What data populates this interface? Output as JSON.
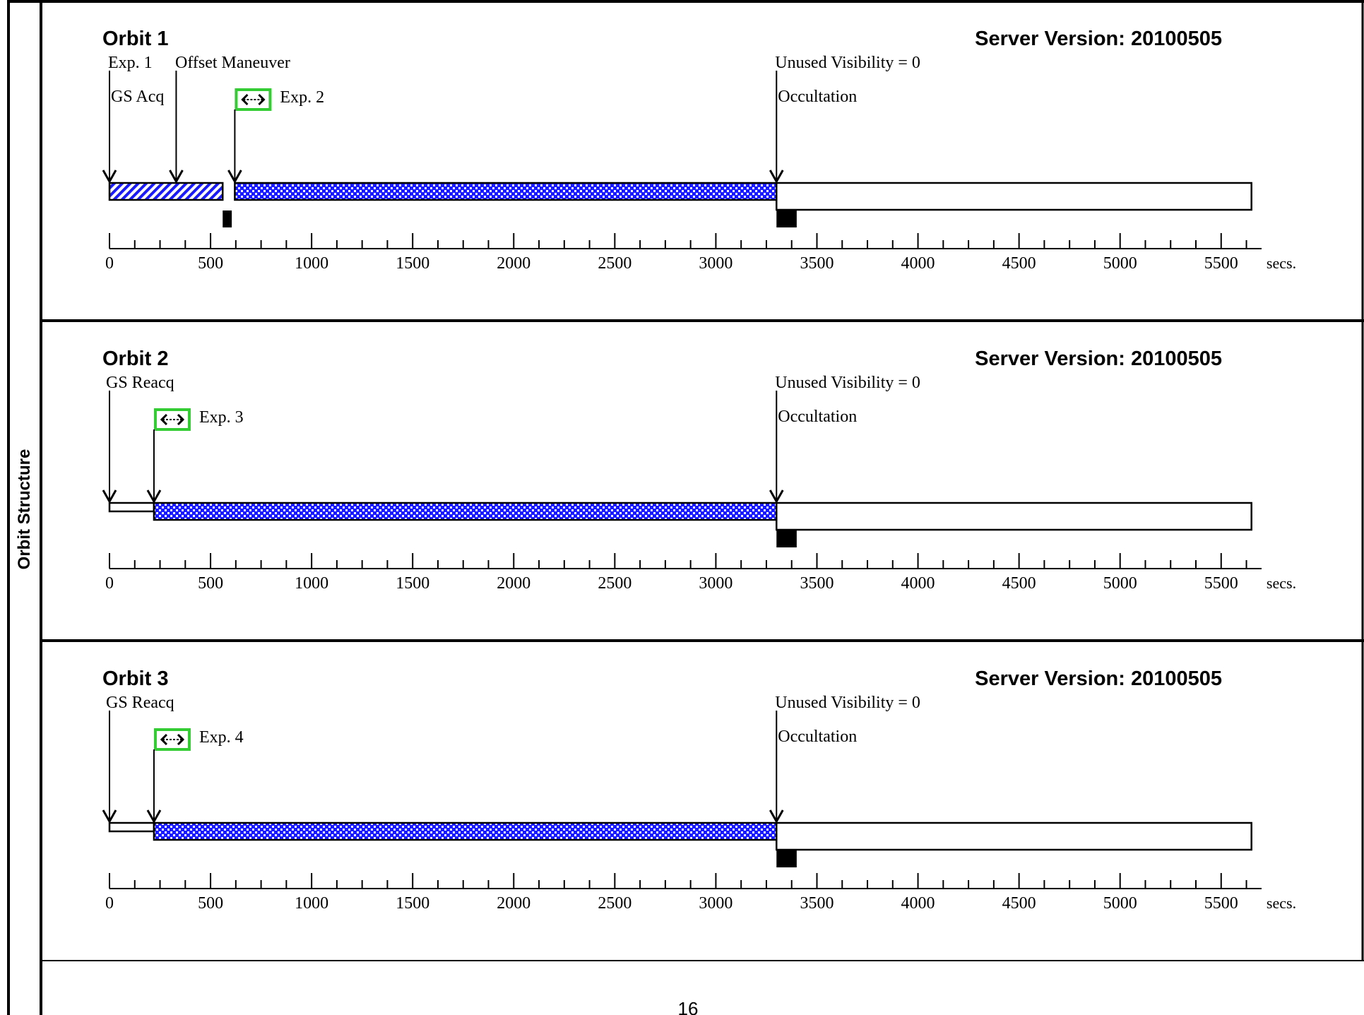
{
  "side_label": "Orbit Structure",
  "page_number": "16",
  "axis": {
    "min": 0,
    "max": 5700,
    "major_step": 500,
    "minor_step": 125,
    "tick_labels": [
      "0",
      "500",
      "1000",
      "1500",
      "2000",
      "2500",
      "3000",
      "3500",
      "4000",
      "4500",
      "5000",
      "5500"
    ],
    "unit": "secs."
  },
  "colors": {
    "line": "#000000",
    "exposure_fill": "#1a1aff",
    "maneuver_fill": "#1a1aff",
    "exp_marker_border": "#33cc33",
    "background": "#ffffff"
  },
  "orbits": [
    {
      "title": "Orbit 1",
      "server_version": "Server Version: 20100505",
      "unused_visibility": "Unused Visibility = 0",
      "occultation_label": "Occultation",
      "occultation_time": 3300,
      "events_top": [
        {
          "label": "Exp. 1",
          "time": 0
        },
        {
          "label": "Offset Maneuver",
          "time": 330
        }
      ],
      "events_second": [
        {
          "label": "GS Acq",
          "time": 0
        }
      ],
      "exposure_marker": {
        "label": "Exp. 2",
        "time": 620,
        "icon": "double-arrow-icon"
      },
      "segments": [
        {
          "kind": "hatched",
          "start": 0,
          "end": 560
        },
        {
          "kind": "dotted",
          "start": 620,
          "end": 3300
        },
        {
          "kind": "hollow-tall",
          "start": 3300,
          "end": 5650
        }
      ],
      "black_blocks": [
        {
          "start": 560,
          "end": 605
        },
        {
          "start": 3300,
          "end": 3400
        }
      ]
    },
    {
      "title": "Orbit 2",
      "server_version": "Server Version: 20100505",
      "unused_visibility": "Unused Visibility = 0",
      "occultation_label": "Occultation",
      "occultation_time": 3300,
      "events_top": [
        {
          "label": "GS Reacq",
          "time": 0
        }
      ],
      "events_second": [],
      "exposure_marker": {
        "label": "Exp. 3",
        "time": 220,
        "icon": "double-arrow-icon"
      },
      "segments": [
        {
          "kind": "hollow-thin",
          "start": 0,
          "end": 220
        },
        {
          "kind": "dotted",
          "start": 220,
          "end": 3300
        },
        {
          "kind": "hollow-tall",
          "start": 3300,
          "end": 5650
        }
      ],
      "black_blocks": [
        {
          "start": 3300,
          "end": 3400
        }
      ]
    },
    {
      "title": "Orbit 3",
      "server_version": "Server Version: 20100505",
      "unused_visibility": "Unused Visibility = 0",
      "occultation_label": "Occultation",
      "occultation_time": 3300,
      "events_top": [
        {
          "label": "GS Reacq",
          "time": 0
        }
      ],
      "events_second": [],
      "exposure_marker": {
        "label": "Exp. 4",
        "time": 220,
        "icon": "double-arrow-icon"
      },
      "segments": [
        {
          "kind": "hollow-thin",
          "start": 0,
          "end": 220
        },
        {
          "kind": "dotted",
          "start": 220,
          "end": 3300
        },
        {
          "kind": "hollow-tall",
          "start": 3300,
          "end": 5650
        }
      ],
      "black_blocks": [
        {
          "start": 3300,
          "end": 3400
        }
      ]
    }
  ]
}
